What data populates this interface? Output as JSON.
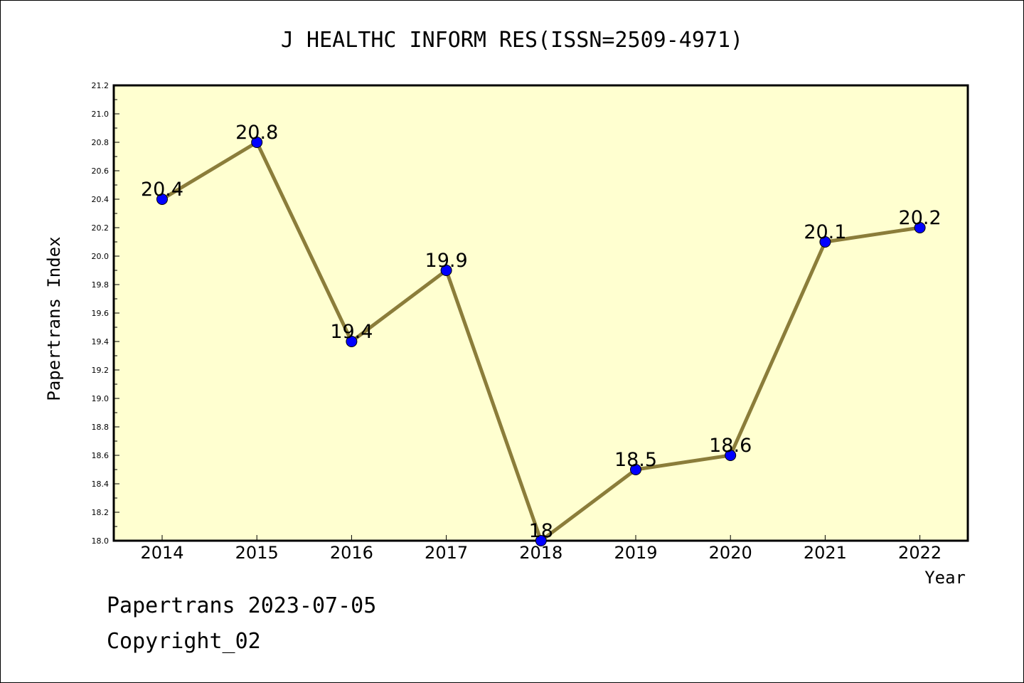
{
  "footer": {
    "line1": "Papertrans 2023-07-05",
    "line2": "Copyright_02"
  },
  "chart_data": {
    "type": "line",
    "title": "J HEALTHC INFORM RES(ISSN=2509-4971)",
    "xlabel": "Year",
    "ylabel": "Papertrans Index",
    "categories": [
      "2014",
      "2015",
      "2016",
      "2017",
      "2018",
      "2019",
      "2020",
      "2021",
      "2022"
    ],
    "values": [
      20.4,
      20.8,
      19.4,
      19.9,
      18.0,
      18.5,
      18.6,
      20.1,
      20.2
    ],
    "data_labels": [
      "20.4",
      "20.8",
      "19.4",
      "19.9",
      "18",
      "18.5",
      "18.6",
      "20.1",
      "20.2"
    ],
    "ylim": [
      18.0,
      21.2
    ],
    "yticks": [
      "18.0",
      "18.2",
      "18.4",
      "18.6",
      "18.8",
      "19.0",
      "19.2",
      "19.4",
      "19.6",
      "19.8",
      "20.0",
      "20.2",
      "20.4",
      "20.6",
      "20.8",
      "21.0",
      "21.2"
    ],
    "grid": false,
    "colors": {
      "plot_background": "#ffffd0",
      "line": "#8b7d3a",
      "marker": "#0000ff"
    }
  }
}
